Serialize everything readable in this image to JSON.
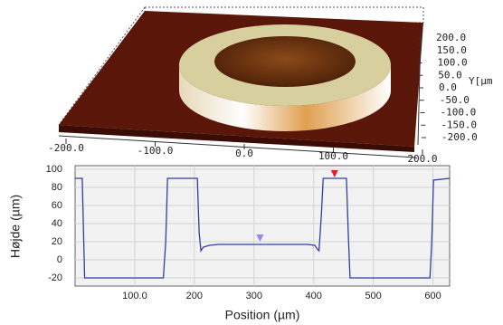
{
  "chart_data": [
    {
      "type": "surface3d",
      "xticks": [
        {
          "value": -200,
          "label": "-200.0"
        },
        {
          "value": -100,
          "label": "-100.0"
        },
        {
          "value": 0,
          "label": "0.0"
        },
        {
          "value": 100,
          "label": "100.0"
        },
        {
          "value": 200,
          "label": "200.0"
        }
      ],
      "yticks": [
        {
          "value": 200,
          "label": "200.0"
        },
        {
          "value": 150,
          "label": "150.0"
        },
        {
          "value": 100,
          "label": "100.0"
        },
        {
          "value": 50,
          "label": "50.0"
        },
        {
          "value": 0,
          "label": "0.0"
        },
        {
          "value": -50,
          "label": "-50.0"
        },
        {
          "value": -100,
          "label": "-100.0"
        },
        {
          "value": -150,
          "label": "-150.0"
        },
        {
          "value": -200,
          "label": "-200.0"
        }
      ],
      "ylabel": "Y[µm"
    },
    {
      "type": "line",
      "xlabel": "Position (µm)",
      "ylabel": "Højde (µm)",
      "x": [
        0,
        12,
        14,
        16,
        148,
        152,
        155,
        205,
        208,
        211,
        215,
        225,
        240,
        390,
        402,
        406,
        409,
        413,
        416,
        455,
        458,
        461,
        595,
        598,
        601,
        628
      ],
      "values": [
        90,
        90,
        35,
        -20,
        -20,
        20,
        90,
        90,
        30,
        10,
        14,
        16,
        17,
        17,
        16,
        12,
        10,
        50,
        90,
        90,
        30,
        -20,
        -20,
        20,
        88,
        90
      ],
      "color": "#3040a0",
      "xlim": [
        0,
        628
      ],
      "ylim": [
        -29,
        104
      ],
      "xticks": [
        {
          "value": 100,
          "label": "100.0"
        },
        200,
        300,
        400,
        500,
        600
      ],
      "yticks": [
        -20,
        0,
        20,
        40,
        60,
        80,
        100
      ],
      "grid": true,
      "cursors": [
        {
          "x": 435,
          "y": 94,
          "color": "#e02020"
        },
        {
          "x": 310,
          "y": 23,
          "color": "#8a8af0"
        }
      ]
    }
  ]
}
